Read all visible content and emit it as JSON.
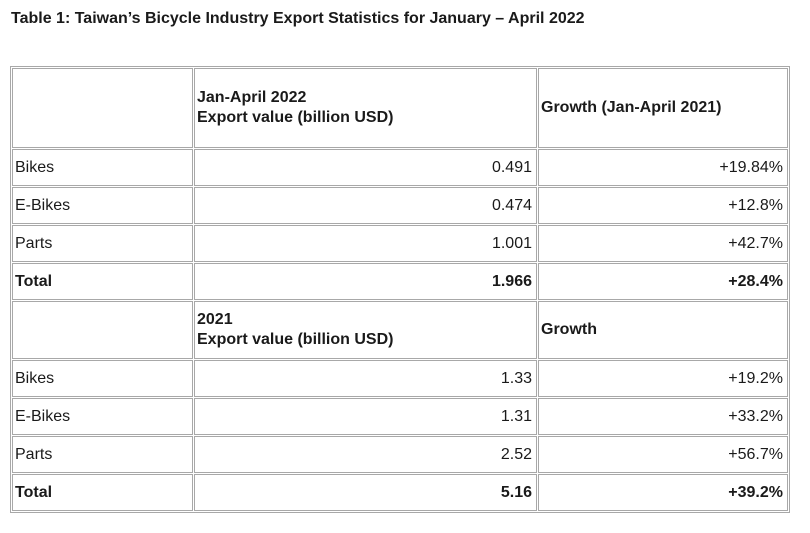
{
  "title": "Table 1: Taiwan’s Bicycle Industry Export Statistics for January – April 2022",
  "section_2022": {
    "header": {
      "col1": "",
      "col2_line1": "Jan-April 2022",
      "col2_line2": "Export value (billion USD)",
      "col3": "Growth (Jan-April 2021)"
    },
    "rows": [
      {
        "label": "Bikes",
        "value": "0.491",
        "growth": "+19.84%"
      },
      {
        "label": "E-Bikes",
        "value": "0.474",
        "growth": "+12.8%"
      },
      {
        "label": "Parts",
        "value": "1.001",
        "growth": "+42.7%"
      },
      {
        "label": "Total",
        "value": "1.966",
        "growth": "+28.4%"
      }
    ]
  },
  "section_2021": {
    "header": {
      "col1": "",
      "col2_line1": "2021",
      "col2_line2": "Export value (billion USD)",
      "col3": "Growth"
    },
    "rows": [
      {
        "label": "Bikes",
        "value": "1.33",
        "growth": "+19.2%"
      },
      {
        "label": "E-Bikes",
        "value": "1.31",
        "growth": "+33.2%"
      },
      {
        "label": "Parts",
        "value": "2.52",
        "growth": "+56.7%"
      },
      {
        "label": "Total",
        "value": "5.16",
        "growth": "+39.2%"
      }
    ]
  }
}
